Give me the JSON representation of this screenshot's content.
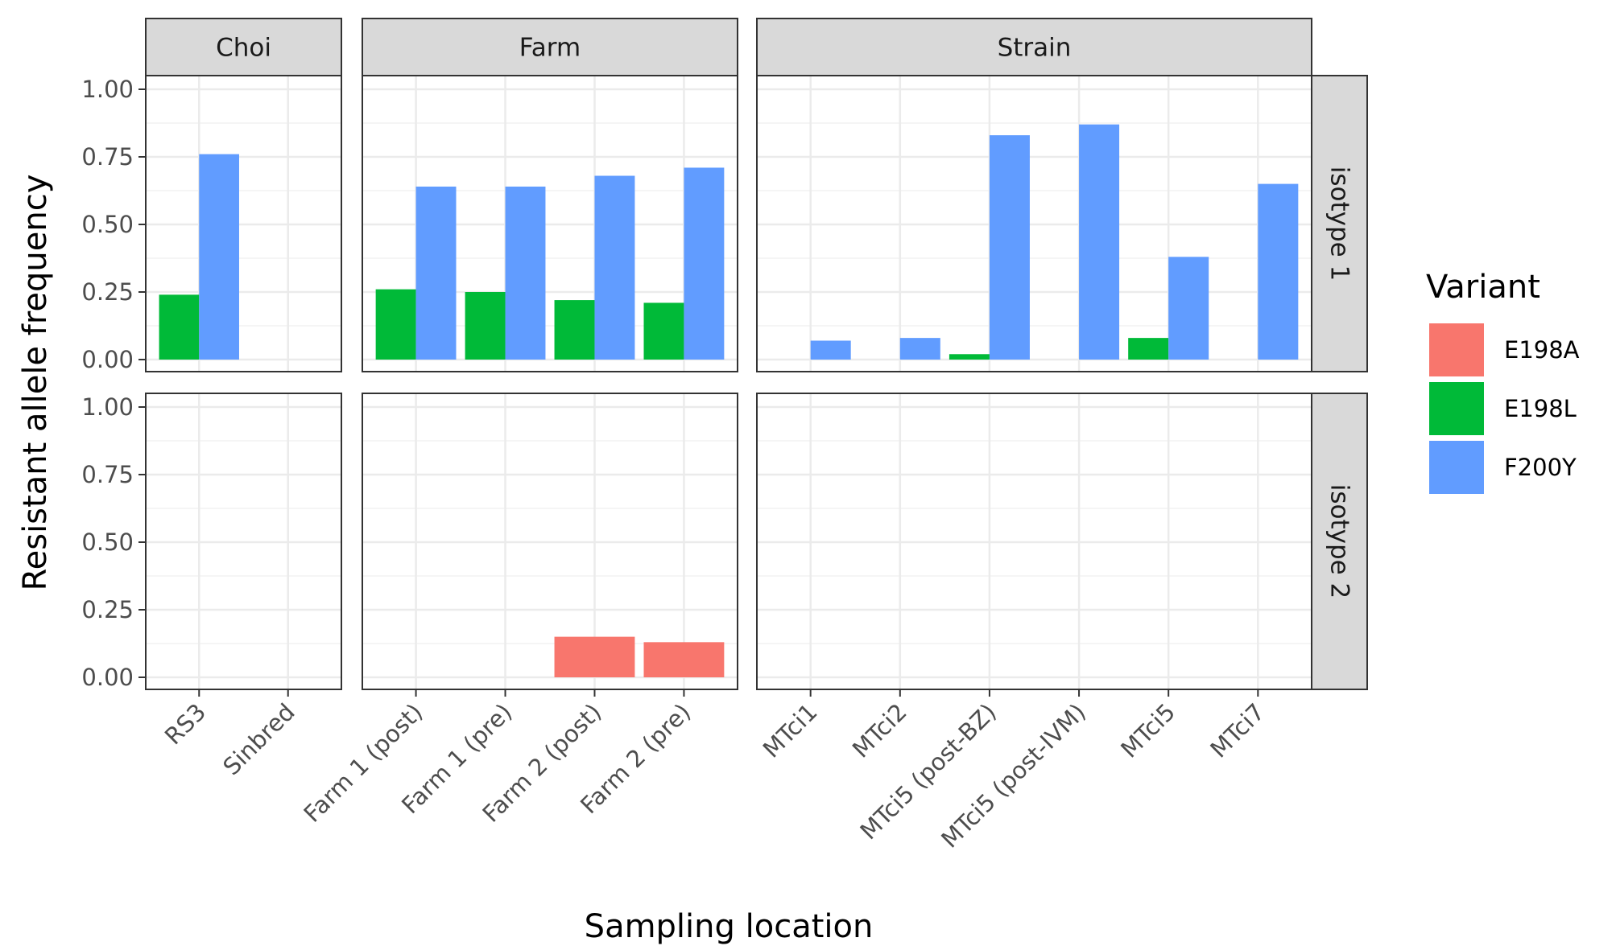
{
  "chart_data": {
    "type": "bar",
    "subtype": "faceted-grouped-bar",
    "xlabel": "Sampling location",
    "ylabel": "Resistant allele frequency",
    "ylim": [
      0,
      1
    ],
    "yticks": [
      "0.00",
      "0.25",
      "0.50",
      "0.75",
      "1.00"
    ],
    "grid": true,
    "legend": {
      "title": "Variant",
      "position": "right",
      "entries": [
        {
          "name": "E198A",
          "color": "#F8766D"
        },
        {
          "name": "E198L",
          "color": "#00BA38"
        },
        {
          "name": "F200Y",
          "color": "#619CFF"
        }
      ]
    },
    "facet_columns": [
      {
        "label": "Choi",
        "categories": [
          "RS3",
          "Sinbred"
        ]
      },
      {
        "label": "Farm",
        "categories": [
          "Farm 1 (post)",
          "Farm 1 (pre)",
          "Farm 2 (post)",
          "Farm 2 (pre)"
        ]
      },
      {
        "label": "Strain",
        "categories": [
          "MTci1",
          "MTci2",
          "MTci5 (post-BZ)",
          "MTci5 (post-IVM)",
          "MTci5",
          "MTci7"
        ]
      }
    ],
    "facet_rows": [
      {
        "label": "isotype 1"
      },
      {
        "label": "isotype 2"
      }
    ],
    "bars": [
      {
        "row": 0,
        "col": 0,
        "category": "RS3",
        "variant": "E198L",
        "value": 0.24
      },
      {
        "row": 0,
        "col": 0,
        "category": "RS3",
        "variant": "F200Y",
        "value": 0.76
      },
      {
        "row": 0,
        "col": 1,
        "category": "Farm 1 (post)",
        "variant": "E198L",
        "value": 0.26
      },
      {
        "row": 0,
        "col": 1,
        "category": "Farm 1 (post)",
        "variant": "F200Y",
        "value": 0.64
      },
      {
        "row": 0,
        "col": 1,
        "category": "Farm 1 (pre)",
        "variant": "E198L",
        "value": 0.25
      },
      {
        "row": 0,
        "col": 1,
        "category": "Farm 1 (pre)",
        "variant": "F200Y",
        "value": 0.64
      },
      {
        "row": 0,
        "col": 1,
        "category": "Farm 2 (post)",
        "variant": "E198L",
        "value": 0.22
      },
      {
        "row": 0,
        "col": 1,
        "category": "Farm 2 (post)",
        "variant": "F200Y",
        "value": 0.68
      },
      {
        "row": 0,
        "col": 1,
        "category": "Farm 2 (pre)",
        "variant": "E198L",
        "value": 0.21
      },
      {
        "row": 0,
        "col": 1,
        "category": "Farm 2 (pre)",
        "variant": "F200Y",
        "value": 0.71
      },
      {
        "row": 0,
        "col": 2,
        "category": "MTci1",
        "variant": "F200Y",
        "value": 0.07,
        "align": "right"
      },
      {
        "row": 0,
        "col": 2,
        "category": "MTci2",
        "variant": "F200Y",
        "value": 0.08,
        "align": "right"
      },
      {
        "row": 0,
        "col": 2,
        "category": "MTci5 (post-BZ)",
        "variant": "E198L",
        "value": 0.02
      },
      {
        "row": 0,
        "col": 2,
        "category": "MTci5 (post-BZ)",
        "variant": "F200Y",
        "value": 0.83
      },
      {
        "row": 0,
        "col": 2,
        "category": "MTci5 (post-IVM)",
        "variant": "F200Y",
        "value": 0.87,
        "align": "right"
      },
      {
        "row": 0,
        "col": 2,
        "category": "MTci5",
        "variant": "E198L",
        "value": 0.08
      },
      {
        "row": 0,
        "col": 2,
        "category": "MTci5",
        "variant": "F200Y",
        "value": 0.38
      },
      {
        "row": 0,
        "col": 2,
        "category": "MTci7",
        "variant": "F200Y",
        "value": 0.65,
        "align": "right"
      },
      {
        "row": 1,
        "col": 1,
        "category": "Farm 2 (post)",
        "variant": "E198A",
        "value": 0.15,
        "align": "full"
      },
      {
        "row": 1,
        "col": 1,
        "category": "Farm 2 (pre)",
        "variant": "E198A",
        "value": 0.13,
        "align": "full"
      }
    ]
  }
}
